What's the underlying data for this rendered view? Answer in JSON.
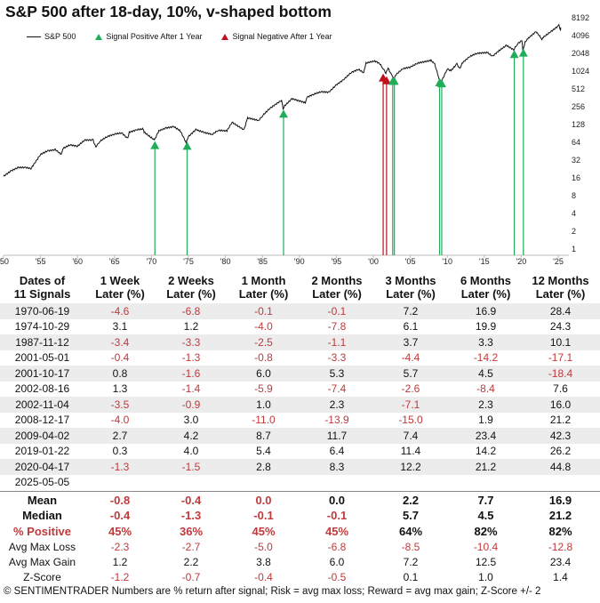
{
  "title": "S&P 500 after 18-day, 10%, v-shaped bottom",
  "footer": "© SENTIMENTRADER  Numbers are % return after signal; Risk = avg max loss; Reward = avg max gain; Z-Score +/- 2",
  "colors": {
    "positive": "#1fad5a",
    "negative": "#c0101b",
    "negative_text": "#c0393b",
    "price": "#111111",
    "shade": "#ececec"
  },
  "chart_data": {
    "type": "line",
    "title": "S&P 500 after 18-day, 10%, v-shaped bottom",
    "y_scale": "log2",
    "ylim": [
      1,
      8192
    ],
    "y_ticks": [
      "1",
      "2",
      "4",
      "8",
      "16",
      "32",
      "64",
      "128",
      "256",
      "512",
      "1024",
      "2048",
      "4096",
      "8192"
    ],
    "xlim": [
      1950,
      2025
    ],
    "x_ticks": [
      "'50",
      "'55",
      "'60",
      "'65",
      "'70",
      "'75",
      "'80",
      "'85",
      "'90",
      "'95",
      "'00",
      "'05",
      "'10",
      "'15",
      "'20",
      "'25"
    ],
    "legend": [
      "S&P 500",
      "Signal Positive After 1 Year",
      "Signal Negative After 1 Year"
    ],
    "legend_position": "top-left",
    "series": [
      {
        "name": "S&P 500",
        "points": [
          [
            1950,
            17
          ],
          [
            1951,
            21
          ],
          [
            1952,
            24
          ],
          [
            1953,
            24
          ],
          [
            1953.7,
            23
          ],
          [
            1954,
            26
          ],
          [
            1955,
            40
          ],
          [
            1956,
            46
          ],
          [
            1957,
            48
          ],
          [
            1957.8,
            40
          ],
          [
            1958,
            50
          ],
          [
            1959,
            58
          ],
          [
            1960,
            55
          ],
          [
            1961,
            70
          ],
          [
            1962.1,
            70
          ],
          [
            1962.45,
            53
          ],
          [
            1963,
            66
          ],
          [
            1964,
            80
          ],
          [
            1965,
            88
          ],
          [
            1966,
            92
          ],
          [
            1966.8,
            74
          ],
          [
            1967,
            95
          ],
          [
            1968,
            104
          ],
          [
            1968.9,
            108
          ],
          [
            1969,
            95
          ],
          [
            1970.4,
            70
          ],
          [
            1971,
            100
          ],
          [
            1972,
            112
          ],
          [
            1973,
            118
          ],
          [
            1973.9,
            100
          ],
          [
            1974.7,
            63
          ],
          [
            1975,
            80
          ],
          [
            1976,
            105
          ],
          [
            1977,
            95
          ],
          [
            1978.2,
            87
          ],
          [
            1979,
            102
          ],
          [
            1980.2,
            100
          ],
          [
            1980.9,
            140
          ],
          [
            1982.5,
            104
          ],
          [
            1983,
            165
          ],
          [
            1984.5,
            150
          ],
          [
            1985,
            180
          ],
          [
            1986,
            240
          ],
          [
            1987.6,
            330
          ],
          [
            1987.8,
            225
          ],
          [
            1988,
            265
          ],
          [
            1989,
            350
          ],
          [
            1990.8,
            300
          ],
          [
            1991,
            370
          ],
          [
            1992,
            420
          ],
          [
            1993,
            460
          ],
          [
            1994,
            450
          ],
          [
            1995,
            600
          ],
          [
            1996,
            740
          ],
          [
            1997,
            970
          ],
          [
            1998,
            1100
          ],
          [
            1998.7,
            960
          ],
          [
            1999,
            1400
          ],
          [
            2000.2,
            1520
          ],
          [
            2000.8,
            1400
          ],
          [
            2001.3,
            1150
          ],
          [
            2001.7,
            950
          ],
          [
            2002,
            1150
          ],
          [
            2002.5,
            860
          ],
          [
            2002.8,
            780
          ],
          [
            2003,
            880
          ],
          [
            2004,
            1130
          ],
          [
            2005,
            1200
          ],
          [
            2006,
            1400
          ],
          [
            2007.8,
            1560
          ],
          [
            2008.3,
            1350
          ],
          [
            2008.9,
            750
          ],
          [
            2009.2,
            680
          ],
          [
            2010,
            1120
          ],
          [
            2010.5,
            1040
          ],
          [
            2011.3,
            1360
          ],
          [
            2011.7,
            1120
          ],
          [
            2012,
            1400
          ],
          [
            2013,
            1800
          ],
          [
            2014,
            2050
          ],
          [
            2015.4,
            2120
          ],
          [
            2016.1,
            1830
          ],
          [
            2017,
            2270
          ],
          [
            2018,
            2800
          ],
          [
            2018.98,
            2350
          ],
          [
            2019.5,
            2980
          ],
          [
            2020.1,
            3380
          ],
          [
            2020.22,
            2240
          ],
          [
            2020.5,
            3150
          ],
          [
            2021,
            3750
          ],
          [
            2022,
            4790
          ],
          [
            2022.8,
            3580
          ],
          [
            2023,
            3850
          ],
          [
            2024,
            4770
          ],
          [
            2025.1,
            6100
          ],
          [
            2025.3,
            4980
          ],
          [
            2025.34,
            5650
          ]
        ]
      }
    ],
    "signals": [
      {
        "date": "1970-06-19",
        "x": 1970.46,
        "price": 72,
        "outcome": "positive"
      },
      {
        "date": "1974-10-29",
        "x": 1974.82,
        "price": 70,
        "outcome": "positive"
      },
      {
        "date": "1987-11-12",
        "x": 1987.86,
        "price": 245,
        "outcome": "positive"
      },
      {
        "date": "2001-05-01",
        "x": 2001.33,
        "price": 1000,
        "outcome": "negative"
      },
      {
        "date": "2001-10-17",
        "x": 2001.79,
        "price": 900,
        "outcome": "negative"
      },
      {
        "date": "2002-08-16",
        "x": 2002.62,
        "price": 880,
        "outcome": "positive"
      },
      {
        "date": "2002-11-04",
        "x": 2002.84,
        "price": 880,
        "outcome": "positive"
      },
      {
        "date": "2008-12-17",
        "x": 2008.96,
        "price": 830,
        "outcome": "positive"
      },
      {
        "date": "2009-04-02",
        "x": 2009.25,
        "price": 800,
        "outcome": "positive"
      },
      {
        "date": "2019-01-22",
        "x": 2019.06,
        "price": 2500,
        "outcome": "positive"
      },
      {
        "date": "2020-04-17",
        "x": 2020.29,
        "price": 2650,
        "outcome": "positive"
      }
    ]
  },
  "table": {
    "headers": [
      [
        "Dates of",
        "11 Signals"
      ],
      [
        "1 Week",
        "Later (%)"
      ],
      [
        "2 Weeks",
        "Later (%)"
      ],
      [
        "1 Month",
        "Later (%)"
      ],
      [
        "2 Months",
        "Later (%)"
      ],
      [
        "3 Months",
        "Later (%)"
      ],
      [
        "6 Months",
        "Later (%)"
      ],
      [
        "12 Months",
        "Later (%)"
      ]
    ],
    "rows": [
      [
        "1970-06-19",
        "-4.6",
        "-6.8",
        "-0.1",
        "-0.1",
        "7.2",
        "16.9",
        "28.4"
      ],
      [
        "1974-10-29",
        "3.1",
        "1.2",
        "-4.0",
        "-7.8",
        "6.1",
        "19.9",
        "24.3"
      ],
      [
        "1987-11-12",
        "-3.4",
        "-3.3",
        "-2.5",
        "-1.1",
        "3.7",
        "3.3",
        "10.1"
      ],
      [
        "2001-05-01",
        "-0.4",
        "-1.3",
        "-0.8",
        "-3.3",
        "-4.4",
        "-14.2",
        "-17.1"
      ],
      [
        "2001-10-17",
        "0.8",
        "-1.6",
        "6.0",
        "5.3",
        "5.7",
        "4.5",
        "-18.4"
      ],
      [
        "2002-08-16",
        "1.3",
        "-1.4",
        "-5.9",
        "-7.4",
        "-2.6",
        "-8.4",
        "7.6"
      ],
      [
        "2002-11-04",
        "-3.5",
        "-0.9",
        "1.0",
        "2.3",
        "-7.1",
        "2.3",
        "16.0"
      ],
      [
        "2008-12-17",
        "-4.0",
        "3.0",
        "-11.0",
        "-13.9",
        "-15.0",
        "1.9",
        "21.2"
      ],
      [
        "2009-04-02",
        "2.7",
        "4.2",
        "8.7",
        "11.7",
        "7.4",
        "23.4",
        "42.3"
      ],
      [
        "2019-01-22",
        "0.3",
        "4.0",
        "5.4",
        "6.4",
        "11.4",
        "14.2",
        "26.2"
      ],
      [
        "2020-04-17",
        "-1.3",
        "-1.5",
        "2.8",
        "8.3",
        "12.2",
        "21.2",
        "44.8"
      ],
      [
        "2025-05-05",
        "",
        "",
        "",
        "",
        "",
        "",
        ""
      ]
    ],
    "summary": [
      {
        "cells": [
          "Mean",
          "-0.8",
          "-0.4",
          "0.0",
          "0.0",
          "2.2",
          "7.7",
          "16.9"
        ],
        "bold": true,
        "red": [
          false,
          true,
          true,
          true,
          false,
          false,
          false,
          false
        ]
      },
      {
        "cells": [
          "Median",
          "-0.4",
          "-1.3",
          "-0.1",
          "-0.1",
          "5.7",
          "4.5",
          "21.2"
        ],
        "bold": true,
        "red": [
          false,
          true,
          true,
          true,
          true,
          false,
          false,
          false
        ]
      },
      {
        "cells": [
          "% Positive",
          "45%",
          "36%",
          "45%",
          "45%",
          "64%",
          "82%",
          "82%"
        ],
        "bold": true,
        "red": [
          true,
          true,
          true,
          true,
          true,
          false,
          false,
          false
        ]
      },
      {
        "cells": [
          "Avg Max Loss",
          "-2.3",
          "-2.7",
          "-5.0",
          "-6.8",
          "-8.5",
          "-10.4",
          "-12.8"
        ],
        "bold": false,
        "red": [
          false,
          true,
          true,
          true,
          true,
          true,
          true,
          true
        ]
      },
      {
        "cells": [
          "Avg Max Gain",
          "1.2",
          "2.2",
          "3.8",
          "6.0",
          "7.2",
          "12.5",
          "23.4"
        ],
        "bold": false,
        "red": [
          false,
          false,
          false,
          false,
          false,
          false,
          false,
          false
        ]
      },
      {
        "cells": [
          "Z-Score",
          "-1.2",
          "-0.7",
          "-0.4",
          "-0.5",
          "0.1",
          "1.0",
          "1.4"
        ],
        "bold": false,
        "red": [
          false,
          true,
          true,
          true,
          true,
          false,
          false,
          false
        ]
      }
    ]
  }
}
